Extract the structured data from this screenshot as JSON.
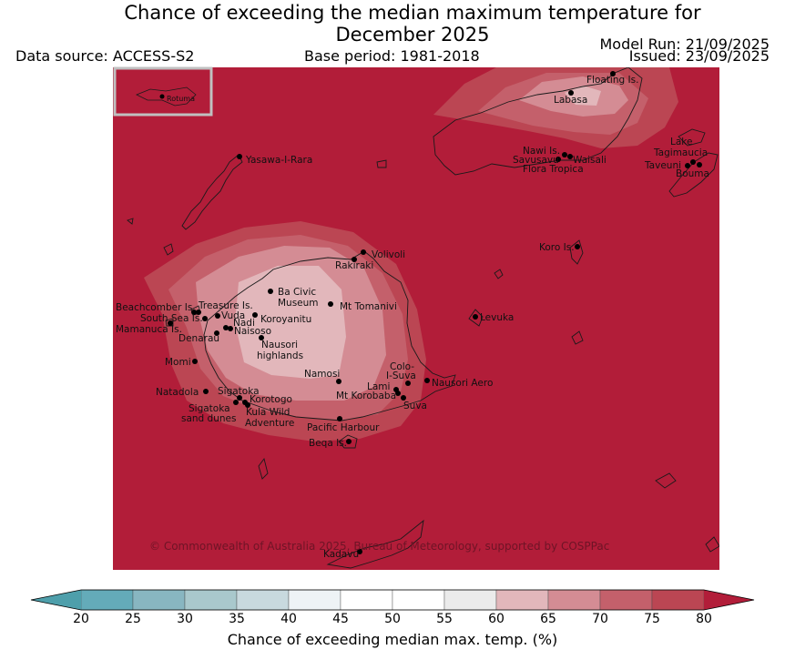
{
  "header": {
    "title_line1": "Chance of exceeding the median maximum temperature for",
    "title_line2": "December 2025",
    "data_source": "Data source: ACCESS-S2",
    "base_period": "Base period: 1981-2018",
    "model_run": "Model Run: 21/09/2025",
    "issued": "Issued: 23/09/2025"
  },
  "map": {
    "inset_label": "Rotuma",
    "copyright": "© Commonwealth of Australia 2025, Bureau of Meteorology, supported by COSPPac",
    "places": [
      "Floating Is.",
      "Labasa",
      "Yasawa-I-Rara",
      "Nawi Is.",
      "Savusavu",
      "Waisali",
      "Flora Tropica",
      "Lake",
      "Tagimaucia",
      "Taveuni",
      "Bouma",
      "Koro Is.",
      "Volivoli",
      "Rakiraki",
      "Ba Civic",
      "Museum",
      "Mt Tomanivi",
      "Beachcomber Is.",
      "Treasure Is.",
      "Vuda",
      "South Sea Is.",
      "Koroyanitu",
      "Nadi",
      "Mamanuca Is.",
      "Naisoso",
      "Denarau",
      "Levuka",
      "Nausori",
      "highlands",
      "Momi",
      "Namosi",
      "Colo-",
      "I-Suva",
      "Nausori Aero",
      "Natadola",
      "Sigatoka",
      "Lami",
      "Mt Korobaba",
      "Korotogo",
      "Suva",
      "Sigatoka",
      "sand dunes",
      "Kula Wild",
      "Adventure",
      "Pacific Harbour",
      "Beqa Is.",
      "Kadavu"
    ]
  },
  "colorbar": {
    "title": "Chance of exceeding median max. temp. (%)",
    "ticks": [
      "20",
      "25",
      "30",
      "35",
      "40",
      "45",
      "50",
      "55",
      "60",
      "65",
      "70",
      "75",
      "80"
    ],
    "colors": [
      "#64abb9",
      "#88b6c1",
      "#a9c8cc",
      "#c8d9de",
      "#eef3f6",
      "#ffffff",
      "#ffffff",
      "#ebebeb",
      "#e2b7bb",
      "#d48c94",
      "#c4606b",
      "#bb4653"
    ],
    "under_color": "#4e9fab",
    "over_color": "#b21d39"
  },
  "chart_data": {
    "type": "heatmap",
    "title": "Chance of exceeding the median maximum temperature for December 2025",
    "colorbar_label": "Chance of exceeding median max. temp. (%)",
    "colorbar_range": [
      20,
      80
    ],
    "colorbar_step": 5,
    "background_level": "80+",
    "regions": [
      {
        "area": "Western Viti Levu",
        "levels": [
          "75-80",
          "70-75",
          "65-70",
          "60-65"
        ]
      },
      {
        "area": "Northeast Vanua Levu",
        "levels": [
          "75-80",
          "70-75",
          "65-70"
        ]
      }
    ]
  }
}
